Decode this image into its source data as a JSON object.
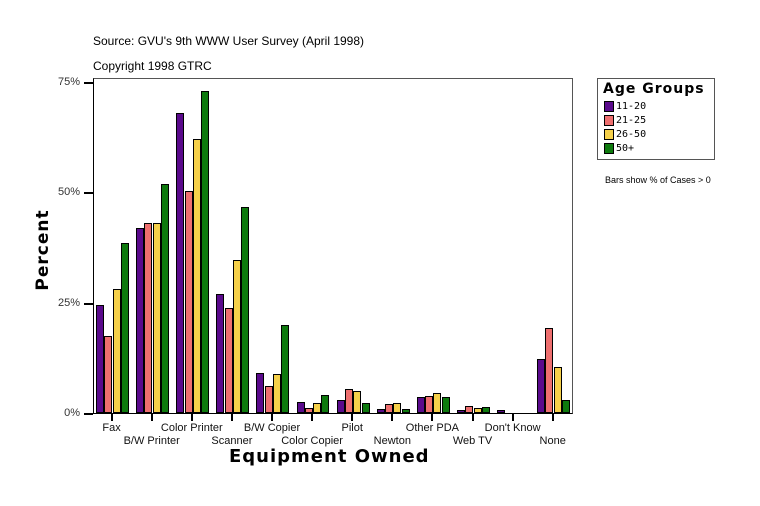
{
  "header": {
    "source": "Source: GVU's 9th WWW User Survey (April 1998)",
    "copyright": "Copyright 1998 GTRC"
  },
  "legend": {
    "title": "Age Groups",
    "items": [
      {
        "label": "11-20",
        "color": "#5a0a8c"
      },
      {
        "label": "21-25",
        "color": "#ee6f6f"
      },
      {
        "label": "26-50",
        "color": "#f5d04a"
      },
      {
        "label": "50+",
        "color": "#0e7a0e"
      }
    ],
    "note": "Bars show % of Cases > 0"
  },
  "chart_data": {
    "type": "bar",
    "title": "Equipment Owned",
    "xlabel": "Equipment Owned",
    "ylabel": "Percent",
    "ylim": [
      0,
      75
    ],
    "yticks": [
      "0%",
      "25%",
      "50%",
      "75%"
    ],
    "grid": false,
    "legend_position": "right",
    "categories": [
      "Fax",
      "B/W Printer",
      "Color Printer",
      "Scanner",
      "B/W Copier",
      "Color Copier",
      "Pilot",
      "Newton",
      "Other PDA",
      "Web TV",
      "Don't Know",
      "None"
    ],
    "series": [
      {
        "name": "11-20",
        "color": "#5a0a8c",
        "values": [
          24.5,
          42.0,
          68.0,
          27.0,
          9.0,
          2.5,
          3.0,
          0.8,
          3.6,
          0.7,
          0.6,
          12.2
        ]
      },
      {
        "name": "21-25",
        "color": "#ee6f6f",
        "values": [
          17.5,
          43.0,
          50.3,
          23.8,
          6.1,
          1.2,
          5.4,
          2.0,
          3.8,
          1.6,
          0.0,
          19.3
        ]
      },
      {
        "name": "26-50",
        "color": "#f5d04a",
        "values": [
          28.0,
          43.0,
          62.0,
          34.7,
          8.8,
          2.3,
          5.0,
          2.3,
          4.5,
          1.2,
          0.0,
          10.4
        ]
      },
      {
        "name": "50+",
        "color": "#0e7a0e",
        "values": [
          38.5,
          52.0,
          73.0,
          46.7,
          20.0,
          4.1,
          2.3,
          1.0,
          3.6,
          1.4,
          0.0,
          3.0
        ]
      }
    ]
  }
}
